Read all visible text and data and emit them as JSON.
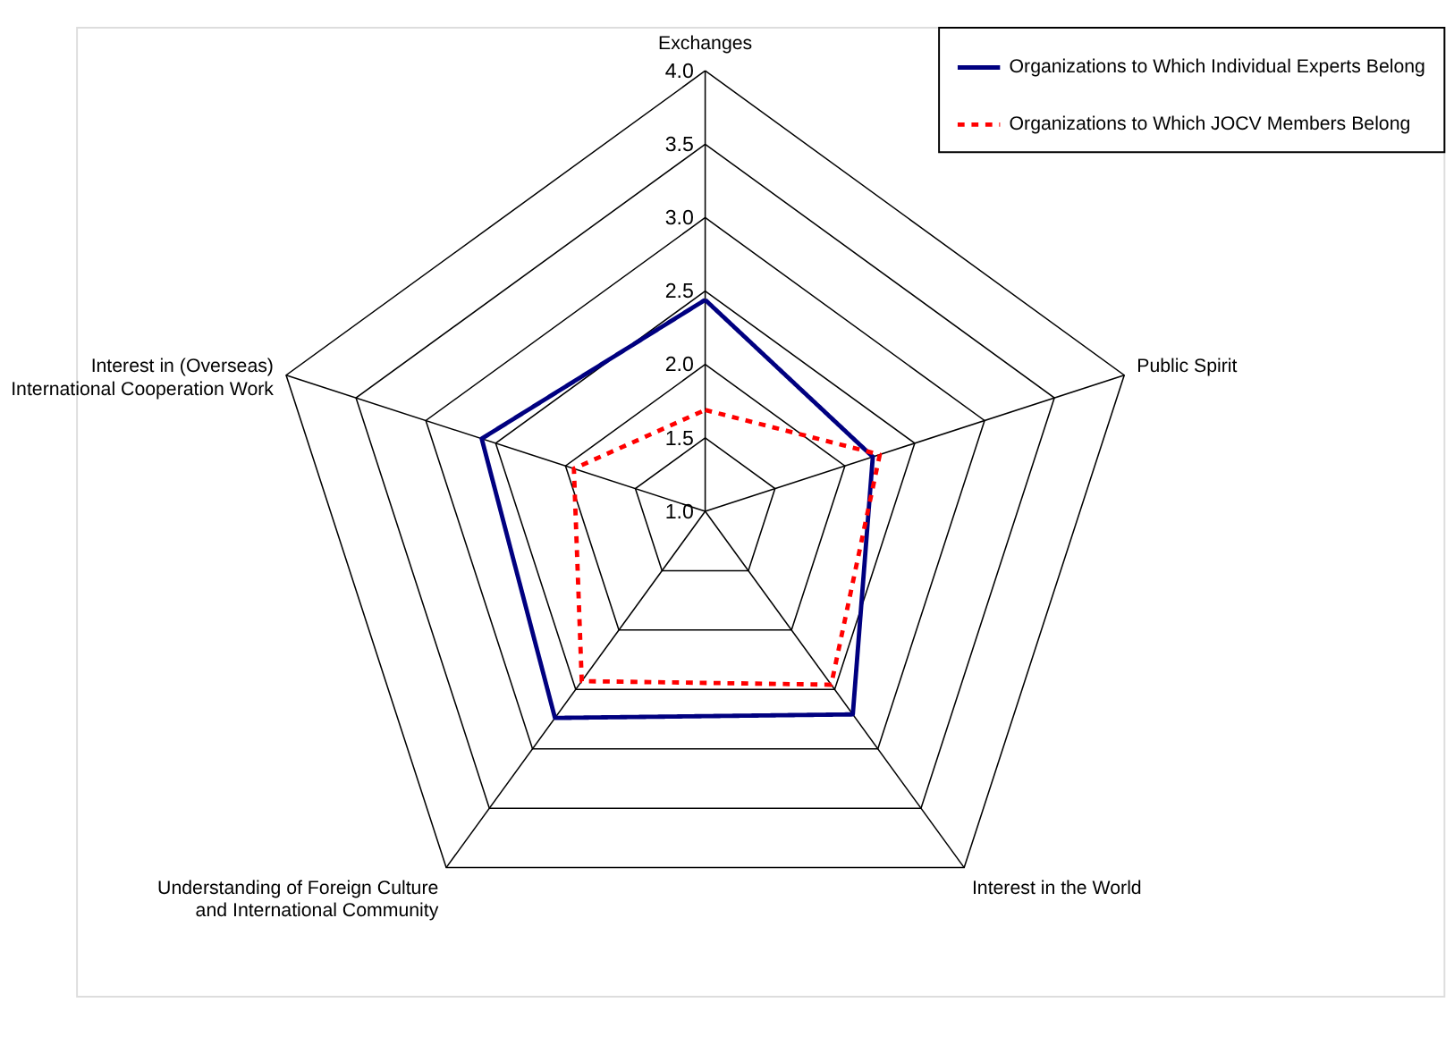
{
  "chart_data": {
    "type": "radar",
    "categories": [
      "Exchanges",
      "Public Spirit",
      "Interest in the World",
      "Understanding of Foreign Culture and International Community",
      "Interest in (Overseas) International Cooperation Work"
    ],
    "series": [
      {
        "name": "Organizations to Which Individual Experts Belong",
        "color": "#000080",
        "line_style": "solid",
        "values": [
          2.44,
          2.2,
          2.71,
          2.74,
          2.6
        ]
      },
      {
        "name": "Organizations to Which JOCV Members Belong",
        "color": "#ff0000",
        "line_style": "dashed",
        "values": [
          1.69,
          2.25,
          2.46,
          2.43,
          1.94
        ]
      }
    ],
    "ylim": [
      1,
      4
    ],
    "yticks": [
      {
        "value": 1,
        "label": "1.0"
      },
      {
        "value": 1.5,
        "label": "1.5"
      },
      {
        "value": 2,
        "label": "2.0"
      },
      {
        "value": 2.5,
        "label": "2.5"
      },
      {
        "value": 3,
        "label": "3.0"
      },
      {
        "value": 3.5,
        "label": "3.5"
      },
      {
        "value": 4,
        "label": "4.0"
      }
    ],
    "grid": true,
    "legend": "top right",
    "marker": "none"
  }
}
